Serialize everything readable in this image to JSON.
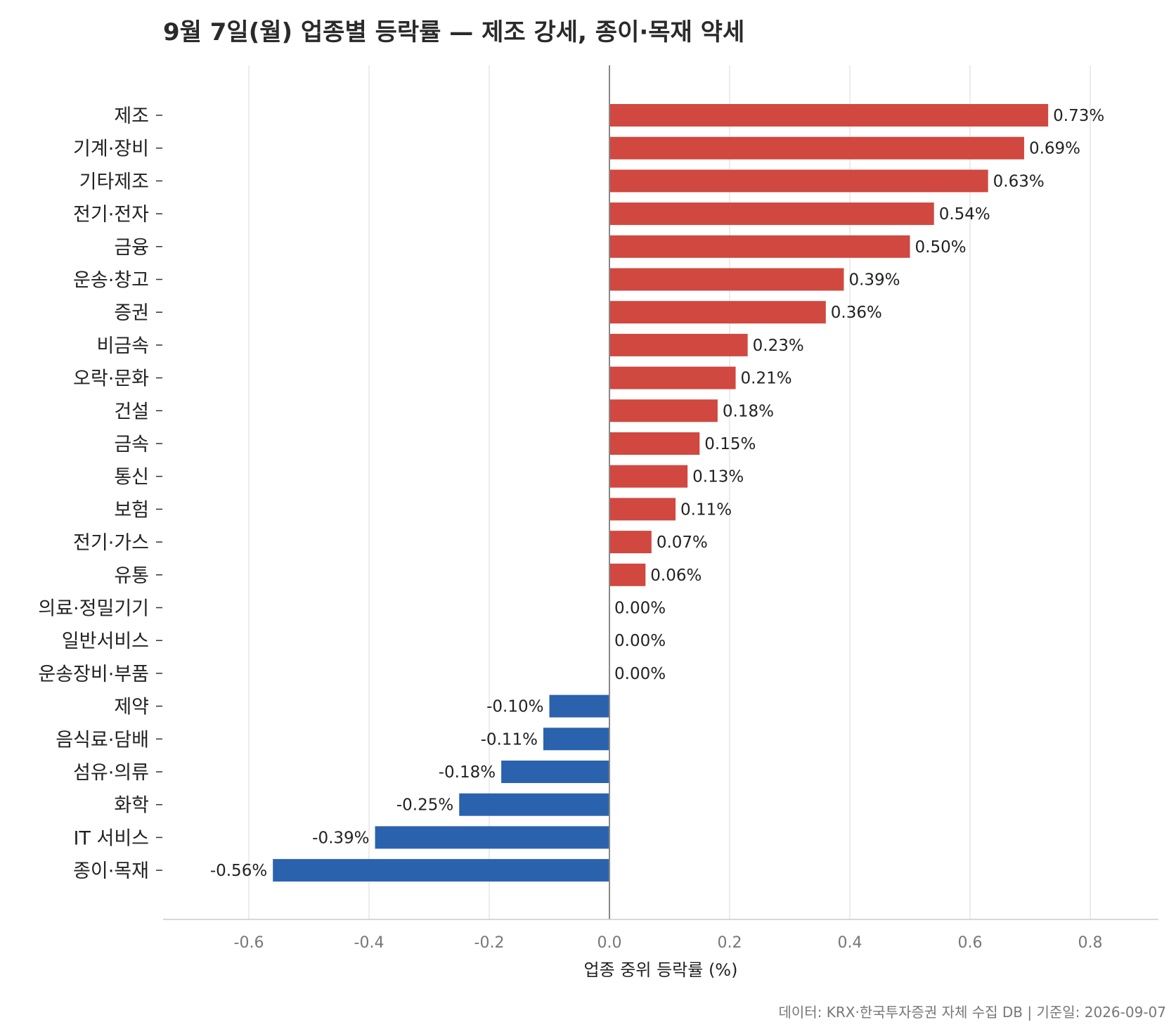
{
  "title": "9월 7일(월) 업종별 등락률 — 제조 강세, 종이·목재 약세",
  "source_note": "데이터: KRX·한국투자증권 자체 수집 DB  |  기준일: 2026-09-07",
  "colors": {
    "positive": "#d0483f",
    "negative": "#2b62ae",
    "grid": "#e5e5e5",
    "zero_line": "#888888"
  },
  "chart_data": {
    "type": "bar",
    "orientation": "horizontal",
    "title": "9월 7일(월) 업종별 등락률 — 제조 강세, 종이·목재 약세",
    "xlabel": "업종 중위 등락률 (%)",
    "ylabel": "",
    "xlim": [
      -0.74,
      0.9
    ],
    "xticks": [
      -0.6,
      -0.4,
      -0.2,
      0.0,
      0.2,
      0.4,
      0.6,
      0.8
    ],
    "xtick_labels": [
      "-0.6",
      "-0.4",
      "-0.2",
      "0.0",
      "0.2",
      "0.4",
      "0.6",
      "0.8"
    ],
    "grid": "vertical",
    "categories": [
      "제조",
      "기계·장비",
      "기타제조",
      "전기·전자",
      "금융",
      "운송·창고",
      "증권",
      "비금속",
      "오락·문화",
      "건설",
      "금속",
      "통신",
      "보험",
      "전기·가스",
      "유통",
      "의료·정밀기기",
      "일반서비스",
      "운송장비·부품",
      "제약",
      "음식료·담배",
      "섬유·의류",
      "화학",
      "IT 서비스",
      "종이·목재"
    ],
    "values": [
      0.73,
      0.69,
      0.63,
      0.54,
      0.5,
      0.39,
      0.36,
      0.23,
      0.21,
      0.18,
      0.15,
      0.13,
      0.11,
      0.07,
      0.06,
      0.0,
      0.0,
      0.0,
      -0.1,
      -0.11,
      -0.18,
      -0.25,
      -0.39,
      -0.56
    ],
    "value_labels": [
      "0.73%",
      "0.69%",
      "0.63%",
      "0.54%",
      "0.50%",
      "0.39%",
      "0.36%",
      "0.23%",
      "0.21%",
      "0.18%",
      "0.15%",
      "0.13%",
      "0.11%",
      "0.07%",
      "0.06%",
      "0.00%",
      "0.00%",
      "0.00%",
      "-0.10%",
      "-0.11%",
      "-0.18%",
      "-0.25%",
      "-0.39%",
      "-0.56%"
    ]
  }
}
